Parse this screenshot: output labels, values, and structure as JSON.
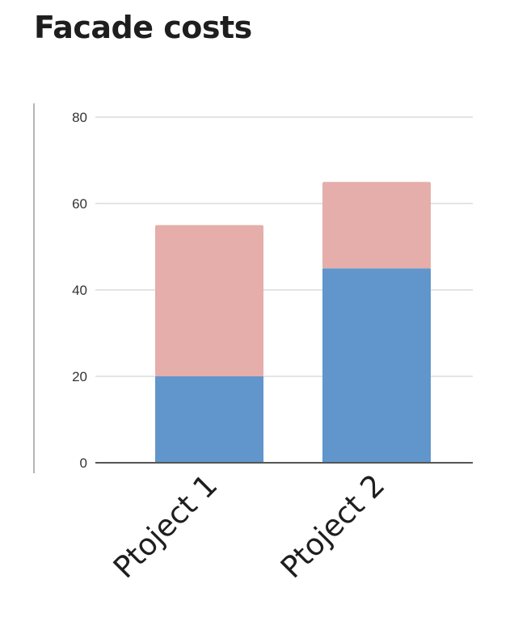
{
  "title": "Facade costs",
  "colors": {
    "series_bottom": "#6096cb",
    "series_top": "#e5aeaa",
    "grid": "#dcdcdc",
    "axis": "#555555"
  },
  "chart_data": {
    "type": "bar",
    "stacked": true,
    "title": "Facade costs",
    "categories": [
      "Ptoject 1",
      "Ptoject 2"
    ],
    "series": [
      {
        "values": [
          20,
          45
        ],
        "color": "#6096cb"
      },
      {
        "values": [
          35,
          20
        ],
        "color": "#e5aeaa"
      }
    ],
    "yticks": [
      0,
      20,
      40,
      60,
      80
    ],
    "ylim": [
      0,
      80
    ],
    "grid": true,
    "legend": "none"
  }
}
